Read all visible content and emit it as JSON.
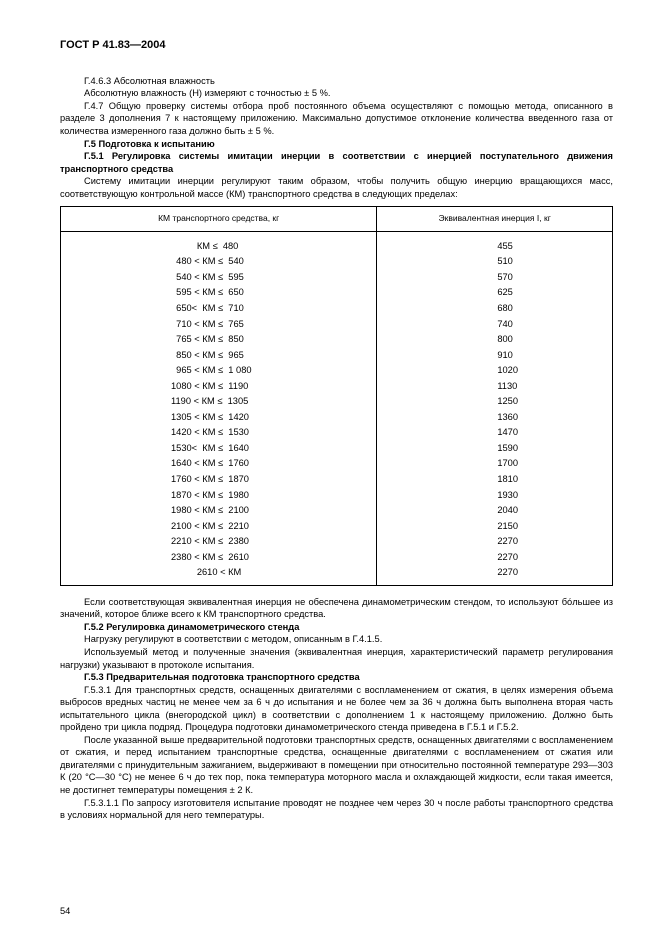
{
  "header": "ГОСТ Р 41.83—2004",
  "p_g463_title": "Г.4.6.3 Абсолютная влажность",
  "p_g463_body": "Абсолютную влажность (H) измеряют с точностью ± 5 %.",
  "p_g47": "Г.4.7 Общую проверку системы отбора проб постоянного объема осуществляют с помощью метода, описанного в разделе 3 дополнения 7 к настоящему приложению. Максимально допустимое отклонение количества введенного газа от количества измеренного газа должно быть ± 5 %.",
  "p_g5": "Г.5 Подготовка к испытанию",
  "p_g51": "Г.5.1 Регулировка системы имитации инерции в соответствии с инерцией поступательного движения транспортного средства",
  "p_g51_body": "Систему имитации инерции регулируют таким образом, чтобы получить общую инерцию вращающихся масс, соответствующую контрольной массе (КМ) транспортного средства в следующих пределах:",
  "table": {
    "head_km": "КМ транспортного средства, кг",
    "head_i": "Эквивалентная инерция I, кг",
    "rows": [
      {
        "km": "          КМ ≤  480",
        "i": "455"
      },
      {
        "km": "  480 < КМ ≤  540",
        "i": "510"
      },
      {
        "km": "  540 < КМ ≤  595",
        "i": "570"
      },
      {
        "km": "  595 < КМ ≤  650",
        "i": "625"
      },
      {
        "km": "  650<  КМ ≤  710",
        "i": "680"
      },
      {
        "km": "  710 < КМ ≤  765",
        "i": "740"
      },
      {
        "km": "  765 < КМ ≤  850",
        "i": "800"
      },
      {
        "km": "  850 < КМ ≤  965",
        "i": "910"
      },
      {
        "km": "  965 < КМ ≤  1 080",
        "i": "1020"
      },
      {
        "km": "1080 < КМ ≤  1190",
        "i": "1130"
      },
      {
        "km": "1190 < КМ ≤  1305",
        "i": "1250"
      },
      {
        "km": "1305 < КМ ≤  1420",
        "i": "1360"
      },
      {
        "km": "1420 < КМ ≤  1530",
        "i": "1470"
      },
      {
        "km": "1530<  КМ ≤  1640",
        "i": "1590"
      },
      {
        "km": "1640 < КМ ≤  1760",
        "i": "1700"
      },
      {
        "km": "1760 < КМ ≤  1870",
        "i": "1810"
      },
      {
        "km": "1870 < КМ ≤  1980",
        "i": "1930"
      },
      {
        "km": "1980 < КМ ≤  2100",
        "i": "2040"
      },
      {
        "km": "2100 < КМ ≤  2210",
        "i": "2150"
      },
      {
        "km": "2210 < КМ ≤  2380",
        "i": "2270"
      },
      {
        "km": "2380 < КМ ≤  2610",
        "i": "2270"
      },
      {
        "km": "          2610 < КМ",
        "i": "2270"
      }
    ]
  },
  "p_after_table": "Если соответствующая эквивалентная инерция не обеспечена динамометрическим стендом, то используют бо́льшее из значений, которое ближе всего к КМ транспортного средства.",
  "p_g52": "Г.5.2 Регулировка динамометрического стенда",
  "p_g52_l1": "Нагрузку регулируют в соответствии с методом, описанным в Г.4.1.5.",
  "p_g52_l2": "Используемый метод и полученные значения (эквивалентная инерция, характеристический параметр регулирования нагрузки) указывают в протоколе испытания.",
  "p_g53": "Г.5.3 Предварительная подготовка транспортного средства",
  "p_g531": "Г.5.3.1 Для транспортных средств, оснащенных двигателями с воспламенением от сжатия, в целях измерения объема выбросов вредных частиц не менее чем за 6 ч до испытания и не более чем за 36 ч должна быть выполнена вторая часть испытательного цикла (внегородской цикл) в соответствии с дополнением 1 к настоящему приложению. Должно быть пройдено три цикла подряд. Процедура подготовки динамометрического стенда приведена в Г.5.1 и Г.5.2.",
  "p_g531_2": "После указанной выше предварительной подготовки транспортных средств, оснащенных двигателями с воспламенением от сжатия, и перед испытанием транспортные средства, оснащенные двигателями с воспламенением от сжатия или двигателями с принудительным зажиганием, выдерживают в помещении при относительно постоянной температуре 293—303 К (20 °С—30 °С) не менее 6 ч до тех пор, пока температура моторного масла и охлаждающей жидкости, если такая имеется, не достигнет температуры помещения ± 2 К.",
  "p_g5311": "Г.5.3.1.1 По запросу изготовителя испытание проводят не позднее чем через 30 ч после работы транспортного средства в условиях нормальной для него температуры.",
  "page_number": "54"
}
